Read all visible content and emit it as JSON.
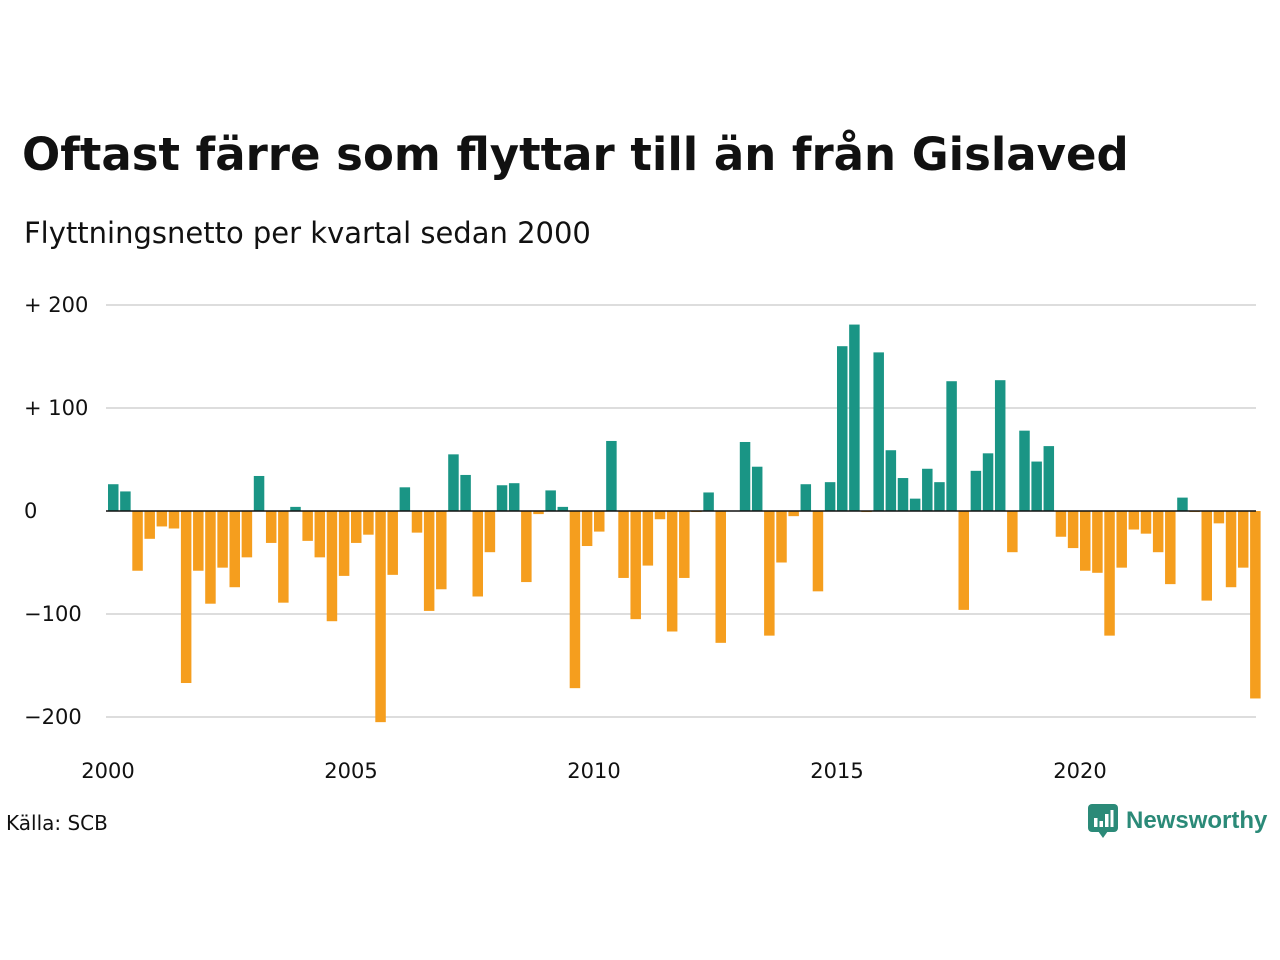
{
  "title": "Oftast färre som flyttar till än från Gislaved",
  "subtitle": "Flyttningsnetto per kvartal sedan 2000",
  "source": "Källa: SCB",
  "logo_text": "Newsworthy",
  "colors": {
    "positive": "#1a9585",
    "negative": "#f59e1e",
    "grid": "#dddddd",
    "zero_line": "#111111",
    "logo": "#2b8a78"
  },
  "chart_data": {
    "type": "bar",
    "title": "Oftast färre som flyttar till än från Gislaved",
    "subtitle": "Flyttningsnetto per kvartal sedan 2000",
    "xlabel": "",
    "ylabel": "",
    "ylim": [
      -205,
      205
    ],
    "xlim": [
      2000,
      2024
    ],
    "grid": true,
    "y_ticks": [
      {
        "value": 200,
        "label": "+ 200"
      },
      {
        "value": 100,
        "label": "+ 100"
      },
      {
        "value": 0,
        "label": "0"
      },
      {
        "value": -100,
        "label": "−100"
      },
      {
        "value": -200,
        "label": "−200"
      }
    ],
    "x_ticks": [
      {
        "value": 2000,
        "label": "2000"
      },
      {
        "value": 2005,
        "label": "2005"
      },
      {
        "value": 2010,
        "label": "2010"
      },
      {
        "value": 2015,
        "label": "2015"
      },
      {
        "value": 2020,
        "label": "2020"
      }
    ],
    "start_year": 2000,
    "periods_per_year": 4,
    "values": [
      26,
      19,
      -58,
      -27,
      -15,
      -17,
      -167,
      -58,
      -90,
      -55,
      -74,
      -45,
      34,
      -31,
      -89,
      4,
      -29,
      -45,
      -107,
      -63,
      -31,
      -23,
      -205,
      -62,
      23,
      -21,
      -97,
      -76,
      55,
      35,
      -83,
      -40,
      25,
      27,
      -69,
      -3,
      20,
      4,
      -172,
      -34,
      -20,
      68,
      -65,
      -105,
      -53,
      -8,
      -117,
      -65,
      -1,
      18,
      -128,
      0,
      67,
      43,
      -121,
      -50,
      -5,
      26,
      -78,
      28,
      160,
      181,
      -1,
      154,
      59,
      32,
      12,
      41,
      28,
      126,
      -96,
      39,
      56,
      127,
      -40,
      78,
      48,
      63,
      -25,
      -36,
      -58,
      -60,
      -121,
      -55,
      -18,
      -22,
      -40,
      -71,
      13,
      -1,
      -87,
      -12,
      -74,
      -55,
      -182
    ]
  }
}
